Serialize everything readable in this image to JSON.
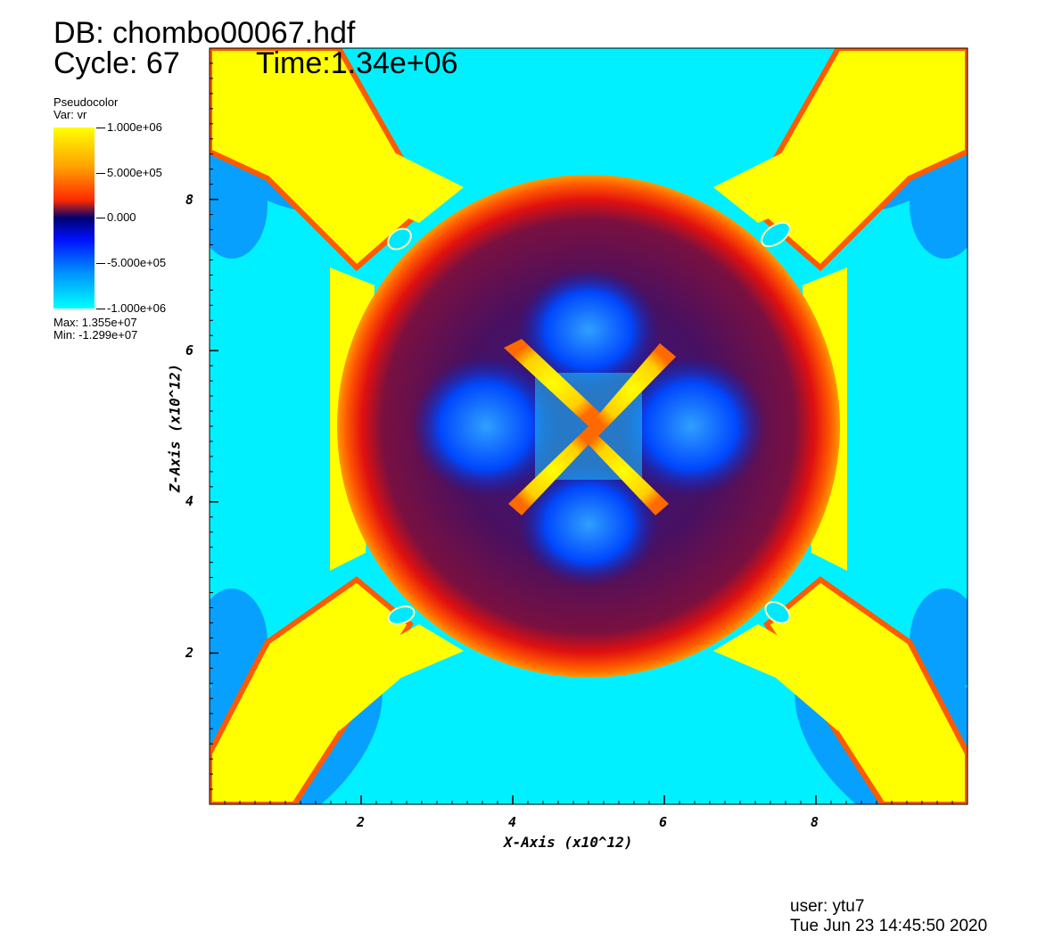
{
  "header": {
    "db_line": "DB: chombo00067.hdf",
    "cycle_line": "Cycle: 67",
    "time_line": "Time:1.34e+06"
  },
  "legend": {
    "plot_type": "Pseudocolor",
    "var_line": "Var: vr",
    "ticks": [
      "1.000e+06",
      "5.000e+05",
      "0.000",
      "-5.000e+05",
      "-1.000e+06"
    ],
    "max_line": "Max:  1.355e+07",
    "min_line": "Min: -1.299e+07",
    "colors": [
      "#ffff00",
      "#ff8c00",
      "#ff2200",
      "#000080",
      "#0000ff",
      "#0080ff",
      "#00ffff"
    ]
  },
  "footer": {
    "user_line": "user: ytu7",
    "date_line": "Tue Jun 23 14:45:50 2020"
  },
  "chart_data": {
    "type": "heatmap",
    "title": "",
    "xlabel": "X-Axis (x10^12)",
    "ylabel": "Z-Axis (x10^12)",
    "xlim": [
      0,
      10
    ],
    "ylim": [
      0,
      10
    ],
    "x_ticks": [
      "2",
      "4",
      "6",
      "8"
    ],
    "y_ticks": [
      "2",
      "4",
      "6",
      "8"
    ],
    "colorbar_range": [
      -1000000,
      1000000
    ],
    "description_colors": {
      "background": "#00ffff",
      "jets": "#ffff00",
      "shell": "#ff2200",
      "interior": "#000080",
      "lobes": "#0055ff"
    }
  }
}
